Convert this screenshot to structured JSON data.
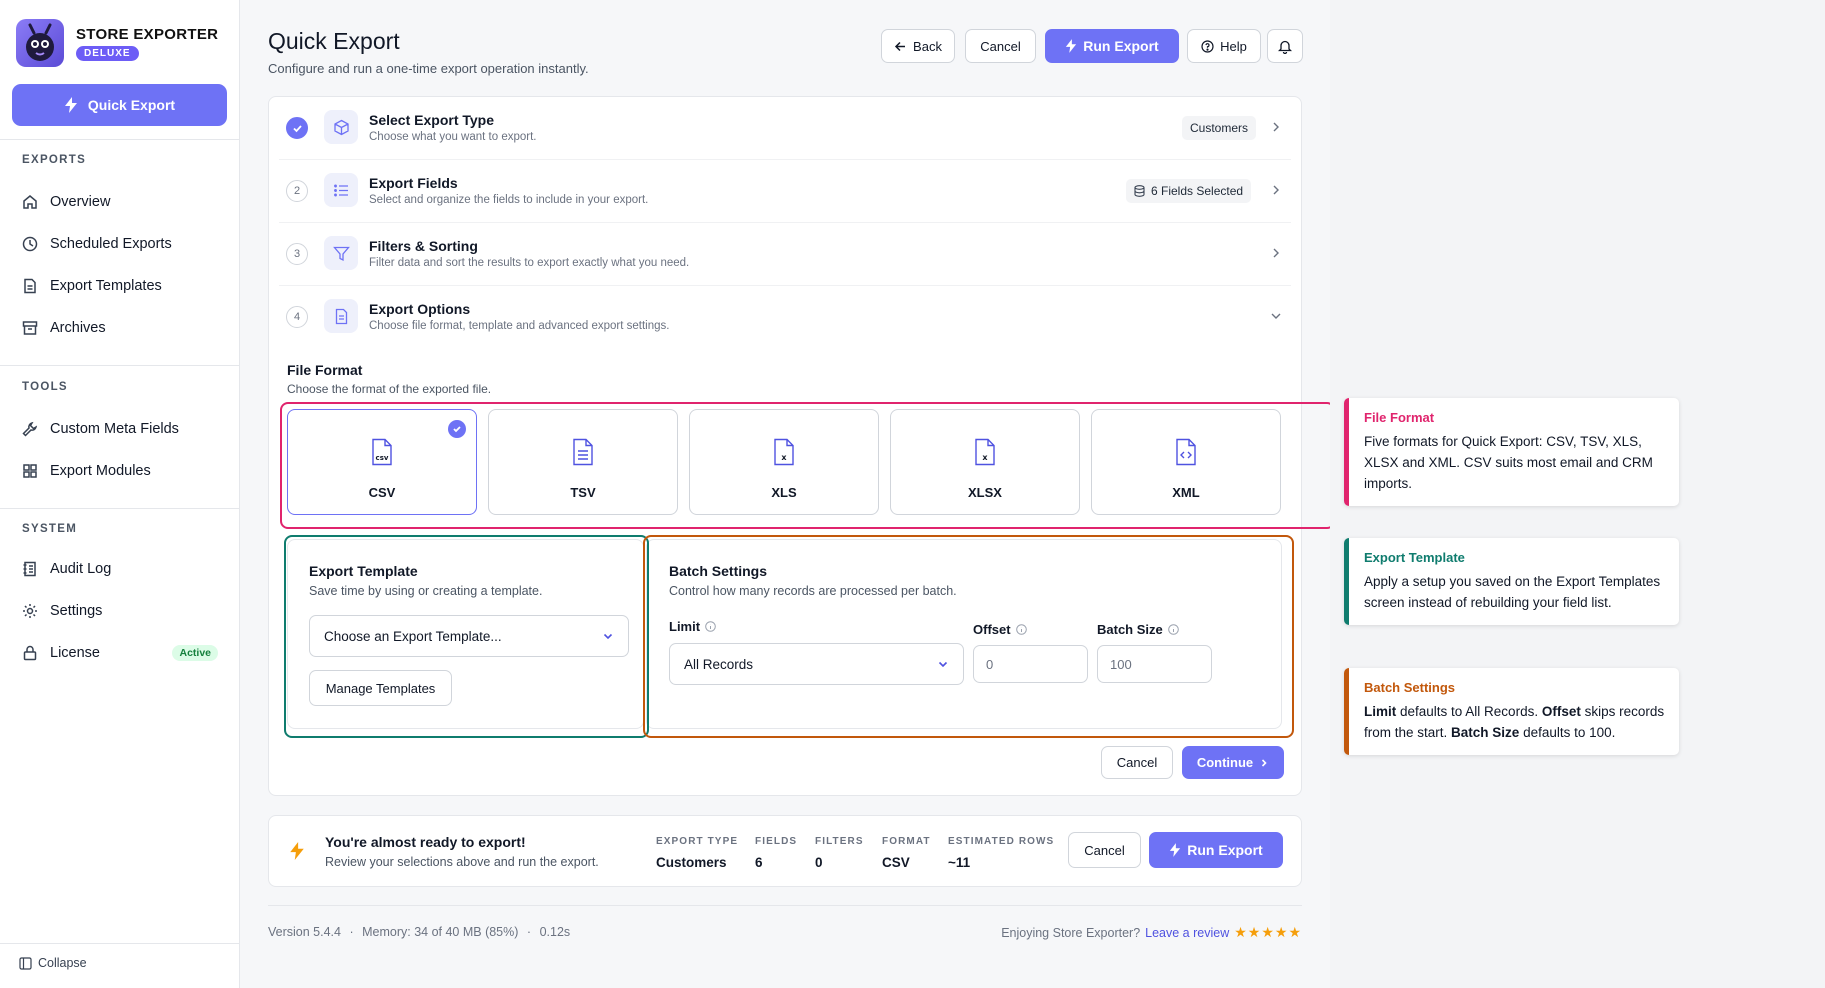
{
  "brand": {
    "name": "STORE EXPORTER",
    "badge": "DELUXE"
  },
  "sidebar": {
    "quick_export": "Quick Export",
    "sections": [
      {
        "label": "EXPORTS",
        "items": [
          {
            "label": "Overview",
            "icon": "home-icon"
          },
          {
            "label": "Scheduled Exports",
            "icon": "clock-icon"
          },
          {
            "label": "Export Templates",
            "icon": "document-icon"
          },
          {
            "label": "Archives",
            "icon": "archive-icon"
          }
        ]
      },
      {
        "label": "TOOLS",
        "items": [
          {
            "label": "Custom Meta Fields",
            "icon": "wrench-icon"
          },
          {
            "label": "Export Modules",
            "icon": "grid-icon"
          }
        ]
      },
      {
        "label": "SYSTEM",
        "items": [
          {
            "label": "Audit Log",
            "icon": "log-icon"
          },
          {
            "label": "Settings",
            "icon": "gear-icon"
          },
          {
            "label": "License",
            "icon": "lock-icon",
            "badge": "Active"
          }
        ]
      }
    ],
    "collapse": "Collapse"
  },
  "header": {
    "title": "Quick Export",
    "subtitle": "Configure and run a one-time export operation instantly.",
    "back": "Back",
    "cancel": "Cancel",
    "run_export": "Run Export",
    "help": "Help"
  },
  "steps": [
    {
      "num": "",
      "title": "Select Export Type",
      "desc": "Choose what you want to export.",
      "tag": "Customers",
      "done": true,
      "icon": "box-icon"
    },
    {
      "num": "2",
      "title": "Export Fields",
      "desc": "Select and organize the fields to include in your export.",
      "tag": "6 Fields Selected",
      "icon": "list-icon"
    },
    {
      "num": "3",
      "title": "Filters & Sorting",
      "desc": "Filter data and sort the results to export exactly what you need.",
      "tag": "",
      "icon": "filter-icon"
    },
    {
      "num": "4",
      "title": "Export Options",
      "desc": "Choose file format, template and advanced export settings.",
      "tag": "",
      "icon": "file-icon",
      "expanded": true
    }
  ],
  "file_format": {
    "title": "File Format",
    "subtitle": "Choose the format of the exported file.",
    "formats": [
      {
        "label": "CSV",
        "glyph": "csv",
        "selected": true
      },
      {
        "label": "TSV",
        "glyph": ""
      },
      {
        "label": "XLS",
        "glyph": "x"
      },
      {
        "label": "XLSX",
        "glyph": "x"
      },
      {
        "label": "XML",
        "glyph": "<>"
      }
    ]
  },
  "template": {
    "title": "Export Template",
    "subtitle": "Save time by using or creating a template.",
    "select_value": "Choose an Export Template...",
    "manage": "Manage Templates"
  },
  "batch": {
    "title": "Batch Settings",
    "subtitle": "Control how many records are processed per batch.",
    "limit_label": "Limit",
    "limit_value": "All Records",
    "offset_label": "Offset",
    "offset_placeholder": "0",
    "batch_size_label": "Batch Size",
    "batch_size_placeholder": "100"
  },
  "options_actions": {
    "cancel": "Cancel",
    "continue": "Continue"
  },
  "summary": {
    "title": "You're almost ready to export!",
    "subtitle": "Review your selections above and run the export.",
    "stats": [
      {
        "key": "EXPORT TYPE",
        "value": "Customers"
      },
      {
        "key": "FIELDS",
        "value": "6"
      },
      {
        "key": "FILTERS",
        "value": "0"
      },
      {
        "key": "FORMAT",
        "value": "CSV"
      },
      {
        "key": "ESTIMATED ROWS",
        "value": "~11"
      }
    ],
    "cancel": "Cancel",
    "run_export": "Run Export"
  },
  "footer": {
    "version": "Version 5.4.4",
    "memory": "Memory: 34 of 40 MB (85%)",
    "time": "0.12s",
    "enjoy": "Enjoying Store Exporter?",
    "review": "Leave a review",
    "stars": "★★★★★"
  },
  "annotations": {
    "file_format": {
      "title": "File Format",
      "body": "Five formats for Quick Export: CSV, TSV, XLS, XLSX and XML. CSV suits most email and CRM imports.",
      "color": "#e0246d"
    },
    "export_template": {
      "title": "Export Template",
      "body": "Apply a setup you saved on the Export Templates screen instead of rebuilding your field list.",
      "color": "#0f7c6e"
    },
    "batch_settings": {
      "title": "Batch Settings",
      "parts": [
        {
          "b": "Limit",
          "t": " defaults to All Records. "
        },
        {
          "b": "Offset",
          "t": " skips records from the start. "
        },
        {
          "b": "Batch Size",
          "t": " defaults to 100."
        }
      ],
      "color": "#c2580c"
    }
  },
  "colors": {
    "accent": "#6e72f5",
    "active_badge": "#15803d"
  }
}
